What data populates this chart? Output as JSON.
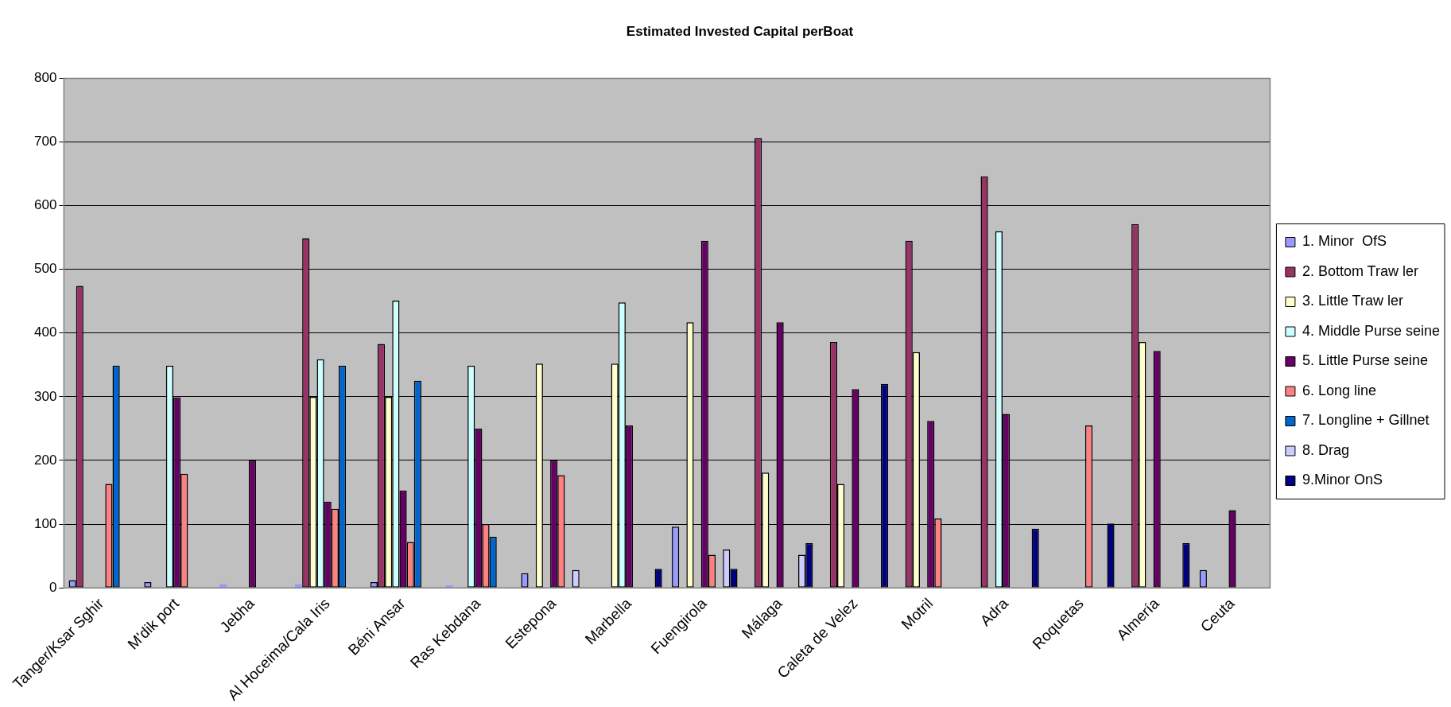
{
  "chart_data": {
    "type": "bar",
    "title": "Estimated Invested Capital perBoat",
    "categories": [
      "Tanger/Ksar Sghir",
      "M'dik port",
      "Jebha",
      "Al Hoceima/Cala Iris",
      "Béni Ansar",
      "Ras Kebdana",
      "Estepona",
      "Marbella",
      "Fuengirola",
      "Málaga",
      "Caleta de Velez",
      "Motril",
      "Adra",
      "Roquetas",
      "Almería",
      "Ceuta"
    ],
    "series": [
      {
        "name": "1. Minor  OfS",
        "color": "#9999ff",
        "values": [
          12,
          9,
          6,
          6,
          9,
          4,
          23,
          null,
          96,
          null,
          null,
          null,
          null,
          null,
          null,
          28
        ]
      },
      {
        "name": "2. Bottom Traw ler",
        "color": "#993366",
        "values": [
          474,
          null,
          null,
          549,
          383,
          null,
          null,
          null,
          null,
          706,
          386,
          545,
          646,
          null,
          571,
          null
        ]
      },
      {
        "name": "3. Little Traw ler",
        "color": "#ffffcc",
        "values": [
          null,
          null,
          null,
          300,
          300,
          null,
          352,
          352,
          417,
          181,
          163,
          370,
          null,
          null,
          386,
          null
        ]
      },
      {
        "name": "4. Middle Purse seine",
        "color": "#ccffff",
        "values": [
          null,
          349,
          null,
          359,
          451,
          349,
          null,
          448,
          null,
          null,
          null,
          null,
          560,
          null,
          null,
          null
        ]
      },
      {
        "name": "5. Little Purse seine",
        "color": "#660066",
        "values": [
          null,
          299,
          200,
          135,
          153,
          250,
          200,
          255,
          545,
          417,
          312,
          262,
          273,
          null,
          372,
          122
        ]
      },
      {
        "name": "6. Long line",
        "color": "#ff8080",
        "values": [
          163,
          179,
          null,
          124,
          72,
          100,
          177,
          null,
          52,
          null,
          null,
          109,
          null,
          255,
          null,
          null
        ]
      },
      {
        "name": "7. Longline + Gillnet",
        "color": "#0066cc",
        "values": [
          349,
          null,
          null,
          349,
          325,
          80,
          null,
          null,
          null,
          null,
          null,
          null,
          null,
          null,
          null,
          null
        ]
      },
      {
        "name": "8. Drag",
        "color": "#ccccff",
        "values": [
          null,
          null,
          null,
          null,
          null,
          null,
          28,
          null,
          60,
          52,
          null,
          null,
          null,
          null,
          null,
          null
        ]
      },
      {
        "name": "9.Minor OnS",
        "color": "#000080",
        "values": [
          null,
          null,
          null,
          null,
          null,
          null,
          null,
          30,
          30,
          70,
          320,
          null,
          93,
          101,
          70,
          null
        ]
      }
    ],
    "ylim": [
      0,
      800
    ],
    "yticks": [
      0,
      100,
      200,
      300,
      400,
      500,
      600,
      700,
      800
    ],
    "grid": "y",
    "legend": "right"
  }
}
